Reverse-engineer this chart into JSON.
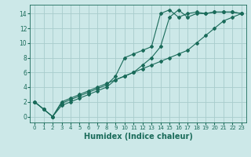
{
  "xlabel": "Humidex (Indice chaleur)",
  "bg_color": "#cce8e8",
  "line_color": "#1a6b5a",
  "grid_color": "#a8cccc",
  "xlim": [
    -0.5,
    23.5
  ],
  "ylim": [
    -0.8,
    15.2
  ],
  "xticks": [
    0,
    1,
    2,
    3,
    4,
    5,
    6,
    7,
    8,
    9,
    10,
    11,
    12,
    13,
    14,
    15,
    16,
    17,
    18,
    19,
    20,
    21,
    22,
    23
  ],
  "yticks": [
    0,
    2,
    4,
    6,
    8,
    10,
    12,
    14
  ],
  "series1_x": [
    0,
    1,
    2,
    3,
    4,
    5,
    6,
    7,
    8,
    9,
    10,
    11,
    12,
    13,
    14,
    15,
    16,
    17,
    18,
    19,
    20,
    21,
    22,
    23
  ],
  "series1_y": [
    2,
    1,
    0,
    2,
    2.5,
    3,
    3.5,
    4,
    4.5,
    5,
    5.5,
    6,
    7,
    8,
    9.5,
    13.5,
    14.5,
    13.5,
    14,
    14,
    14.2,
    14.2,
    14.2,
    14
  ],
  "series2_x": [
    0,
    1,
    2,
    3,
    4,
    5,
    6,
    7,
    8,
    9,
    10,
    11,
    12,
    13,
    14,
    15,
    16,
    17,
    18,
    19,
    20,
    21,
    22,
    23
  ],
  "series2_y": [
    2,
    1,
    0,
    1.8,
    2.3,
    2.8,
    3.3,
    3.8,
    4.3,
    5.5,
    8,
    8.5,
    9,
    9.5,
    14,
    14.5,
    13.5,
    14,
    14.2,
    14,
    14.2,
    14.2,
    14.2,
    14
  ],
  "series3_x": [
    0,
    1,
    2,
    3,
    4,
    5,
    6,
    7,
    8,
    9,
    10,
    11,
    12,
    13,
    14,
    15,
    16,
    17,
    18,
    19,
    20,
    21,
    22,
    23
  ],
  "series3_y": [
    2,
    1,
    0,
    1.5,
    2,
    2.5,
    3,
    3.5,
    4,
    5,
    5.5,
    6,
    6.5,
    7,
    7.5,
    8,
    8.5,
    9,
    10,
    11,
    12,
    13,
    13.5,
    14
  ],
  "xlabel_fontsize": 7,
  "tick_fontsize": 5,
  "marker_size": 2.0,
  "linewidth": 0.8
}
